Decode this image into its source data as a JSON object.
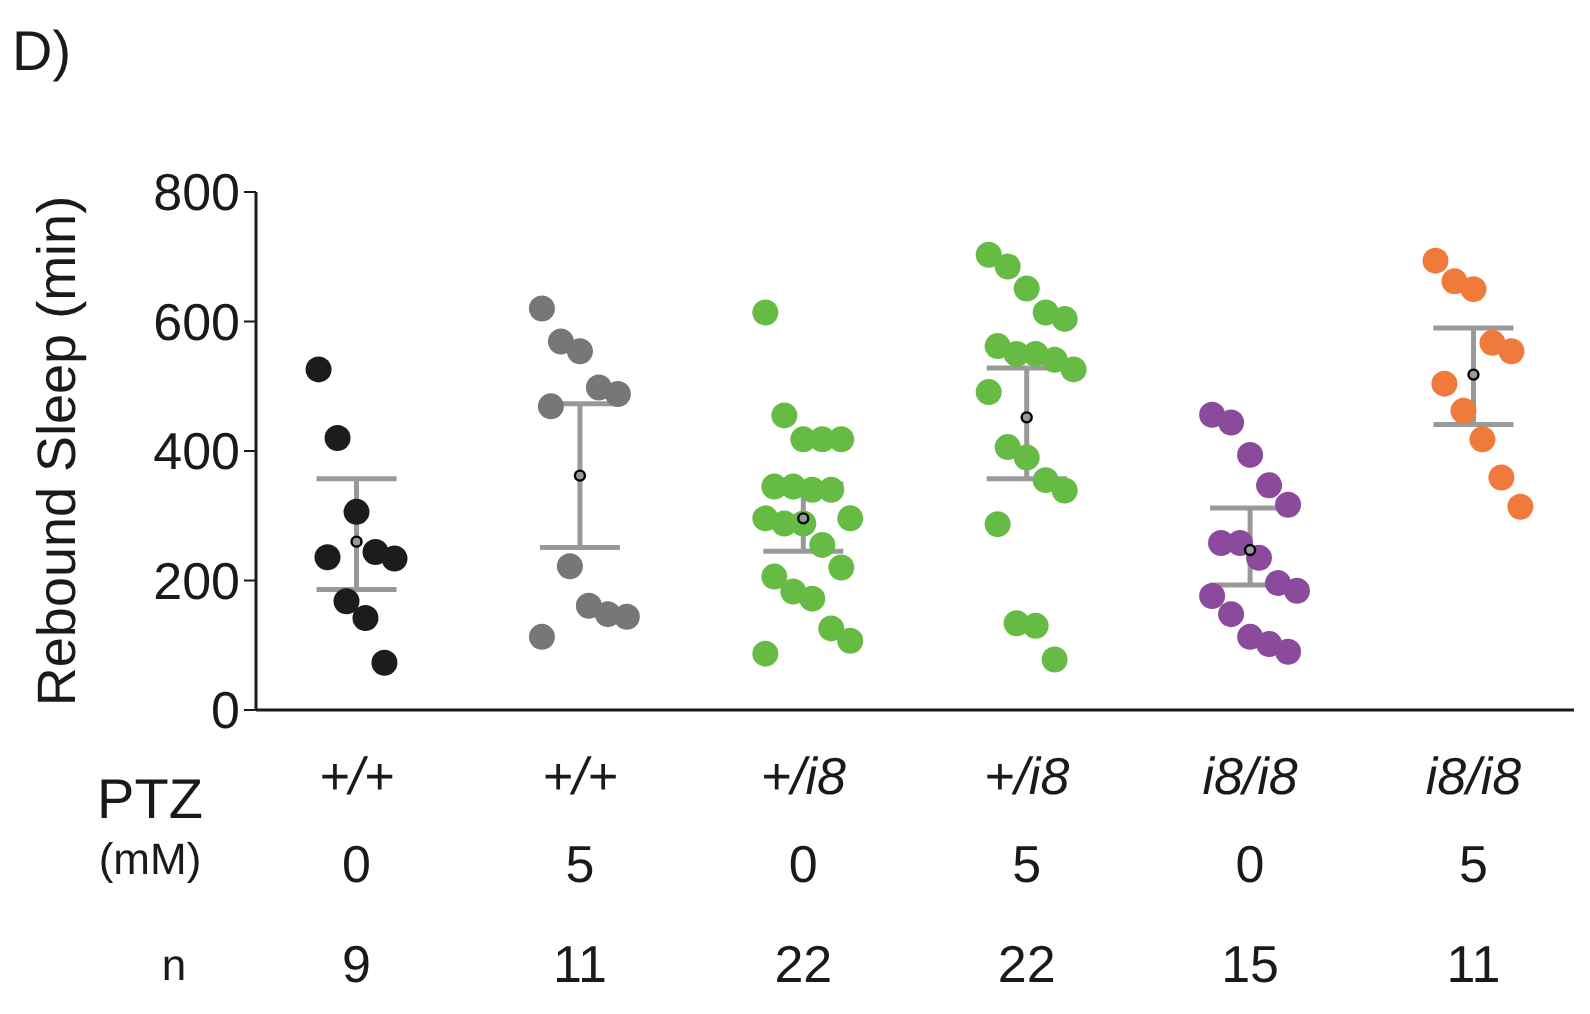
{
  "chart_data": {
    "type": "scatter",
    "title": "D)",
    "ylabel": "Rebound Sleep (min)",
    "categories": [
      "+/+\n0\n9",
      "+/+\n5\n11",
      "+/i8\n0\n22",
      "+/i8\n5\n22",
      "i8/i8\n0\n15",
      "i8/i8\n5\n11"
    ],
    "annotations": [
      "PTZ\n(mM)",
      "n"
    ],
    "ylim": [
      0,
      800
    ],
    "yticks": [
      0,
      200,
      400,
      600,
      800
    ],
    "marker": "circle",
    "series": [
      {
        "color": "#1c1c1c",
        "x": [
          "+/+\n0\n9",
          "+/+\n0\n9",
          "+/+\n0\n9",
          "+/+\n0\n9",
          "+/+\n0\n9",
          "+/+\n0\n9",
          "+/+\n0\n9",
          "+/+\n0\n9",
          "+/+\n0\n9"
        ],
        "values": [
          526,
          420,
          306,
          244,
          234,
          236,
          168,
          142,
          73
        ]
      },
      {
        "color": "#777777",
        "x": [
          "+/+\n5\n11",
          "+/+\n5\n11",
          "+/+\n5\n11",
          "+/+\n5\n11",
          "+/+\n5\n11",
          "+/+\n5\n11",
          "+/+\n5\n11",
          "+/+\n5\n11",
          "+/+\n5\n11",
          "+/+\n5\n11",
          "+/+\n5\n11"
        ],
        "values": [
          620,
          569,
          554,
          498,
          488,
          469,
          222,
          161,
          148,
          144,
          113
        ]
      },
      {
        "color": "#66bb44",
        "x": [
          "+/i8\n0\n22",
          "+/i8\n0\n22",
          "+/i8\n0\n22",
          "+/i8\n0\n22",
          "+/i8\n0\n22",
          "+/i8\n0\n22",
          "+/i8\n0\n22",
          "+/i8\n0\n22",
          "+/i8\n0\n22",
          "+/i8\n0\n22",
          "+/i8\n0\n22",
          "+/i8\n0\n22",
          "+/i8\n0\n22",
          "+/i8\n0\n22",
          "+/i8\n0\n22",
          "+/i8\n0\n22",
          "+/i8\n0\n22",
          "+/i8\n0\n22",
          "+/i8\n0\n22",
          "+/i8\n0\n22",
          "+/i8\n0\n22"
        ],
        "values": [
          614,
          455,
          418,
          418,
          418,
          345,
          345,
          340,
          340,
          296,
          296,
          288,
          288,
          255,
          220,
          206,
          183,
          172,
          126,
          107,
          87
        ]
      },
      {
        "color": "#66bb44",
        "x": [
          "+/i8\n5\n22",
          "+/i8\n5\n22",
          "+/i8\n5\n22",
          "+/i8\n5\n22",
          "+/i8\n5\n22",
          "+/i8\n5\n22",
          "+/i8\n5\n22",
          "+/i8\n5\n22",
          "+/i8\n5\n22",
          "+/i8\n5\n22",
          "+/i8\n5\n22",
          "+/i8\n5\n22",
          "+/i8\n5\n22",
          "+/i8\n5\n22",
          "+/i8\n5\n22",
          "+/i8\n5\n22",
          "+/i8\n5\n22",
          "+/i8\n5\n22",
          "+/i8\n5\n22"
        ],
        "values": [
          703,
          685,
          651,
          614,
          604,
          562,
          550,
          550,
          541,
          526,
          491,
          406,
          390,
          355,
          339,
          287,
          134,
          130,
          78
        ]
      },
      {
        "color": "#8b4a9c",
        "x": [
          "i8/i8\n0\n15",
          "i8/i8\n0\n15",
          "i8/i8\n0\n15",
          "i8/i8\n0\n15",
          "i8/i8\n0\n15",
          "i8/i8\n0\n15",
          "i8/i8\n0\n15",
          "i8/i8\n0\n15",
          "i8/i8\n0\n15",
          "i8/i8\n0\n15",
          "i8/i8\n0\n15",
          "i8/i8\n0\n15",
          "i8/i8\n0\n15",
          "i8/i8\n0\n15",
          "i8/i8\n0\n15"
        ],
        "values": [
          456,
          444,
          394,
          347,
          317,
          258,
          258,
          235,
          196,
          184,
          176,
          148,
          113,
          102,
          90
        ]
      },
      {
        "color": "#f07a3c",
        "x": [
          "i8/i8\n5\n11",
          "i8/i8\n5\n11",
          "i8/i8\n5\n11",
          "i8/i8\n5\n11",
          "i8/i8\n5\n11",
          "i8/i8\n5\n11",
          "i8/i8\n5\n11",
          "i8/i8\n5\n11",
          "i8/i8\n5\n11",
          "i8/i8\n5\n11"
        ],
        "values": [
          694,
          662,
          650,
          567,
          554,
          504,
          462,
          418,
          359,
          314
        ]
      },
      {
        "color": "#999999",
        "x": [
          "+/+\n0\n9",
          "+/+\n5\n11",
          "+/i8\n0\n22",
          "+/i8\n5\n22",
          "i8/i8\n0\n15",
          "i8/i8\n5\n11"
        ],
        "values": [
          260,
          362,
          296,
          452,
          247,
          518
        ],
        "errors": [
          [
            186,
            357
          ],
          [
            251,
            473
          ],
          [
            245,
            349
          ],
          [
            357,
            528
          ],
          [
            193,
            312
          ],
          [
            441,
            590
          ]
        ]
      }
    ]
  }
}
